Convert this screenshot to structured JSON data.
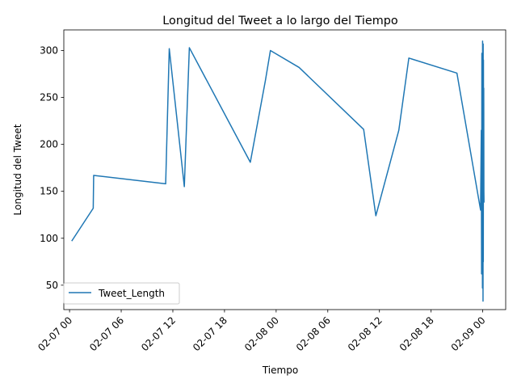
{
  "chart_data": {
    "type": "line",
    "title": "Longitud del Tweet a lo largo del Tiempo",
    "xlabel": "Tiempo",
    "ylabel": "Longitud del Tweet",
    "x_unit": "datetime",
    "xlim": [
      "2023-02-06T23:20",
      "2023-02-09T02:40"
    ],
    "ylim": [
      24,
      322
    ],
    "x_ticks": [
      {
        "value": "2023-02-07T00:00",
        "label": "02-07 00"
      },
      {
        "value": "2023-02-07T06:00",
        "label": "02-07 06"
      },
      {
        "value": "2023-02-07T12:00",
        "label": "02-07 12"
      },
      {
        "value": "2023-02-07T18:00",
        "label": "02-07 18"
      },
      {
        "value": "2023-02-08T00:00",
        "label": "02-08 00"
      },
      {
        "value": "2023-02-08T06:00",
        "label": "02-08 06"
      },
      {
        "value": "2023-02-08T12:00",
        "label": "02-08 12"
      },
      {
        "value": "2023-02-08T18:00",
        "label": "02-08 18"
      },
      {
        "value": "2023-02-09T00:00",
        "label": "02-09 00"
      }
    ],
    "y_ticks": [
      50,
      100,
      150,
      200,
      250,
      300
    ],
    "legend": {
      "position": "lower-left"
    },
    "grid": false,
    "series": [
      {
        "name": "Tweet_Length",
        "color": "#1f77b4",
        "points": [
          [
            "2023-02-07T00:15",
            97
          ],
          [
            "2023-02-07T02:45",
            132
          ],
          [
            "2023-02-07T02:48",
            167
          ],
          [
            "2023-02-07T11:10",
            158
          ],
          [
            "2023-02-07T11:35",
            302
          ],
          [
            "2023-02-07T13:20",
            155
          ],
          [
            "2023-02-07T13:55",
            303
          ],
          [
            "2023-02-07T21:00",
            181
          ],
          [
            "2023-02-07T22:45",
            268
          ],
          [
            "2023-02-07T23:20",
            300
          ],
          [
            "2023-02-08T02:40",
            282
          ],
          [
            "2023-02-08T10:10",
            216
          ],
          [
            "2023-02-08T11:35",
            124
          ],
          [
            "2023-02-08T14:15",
            215
          ],
          [
            "2023-02-08T15:25",
            292
          ],
          [
            "2023-02-08T21:00",
            276
          ],
          [
            "2023-02-08T23:45",
            130
          ],
          [
            "2023-02-08T23:50",
            215
          ],
          [
            "2023-02-08T23:52",
            62
          ],
          [
            "2023-02-08T23:54",
            297
          ],
          [
            "2023-02-08T23:56",
            140
          ],
          [
            "2023-02-08T23:57",
            265
          ],
          [
            "2023-02-08T23:58",
            47
          ],
          [
            "2023-02-08T23:59",
            310
          ],
          [
            "2023-02-09T00:00",
            60
          ],
          [
            "2023-02-09T00:01",
            305
          ],
          [
            "2023-02-09T00:02",
            33
          ],
          [
            "2023-02-09T00:03",
            307
          ],
          [
            "2023-02-09T00:04",
            75
          ],
          [
            "2023-02-09T00:05",
            290
          ],
          [
            "2023-02-09T00:06",
            140
          ],
          [
            "2023-02-09T00:07",
            260
          ],
          [
            "2023-02-09T00:08",
            150
          ],
          [
            "2023-02-09T00:09",
            138
          ]
        ]
      }
    ]
  }
}
